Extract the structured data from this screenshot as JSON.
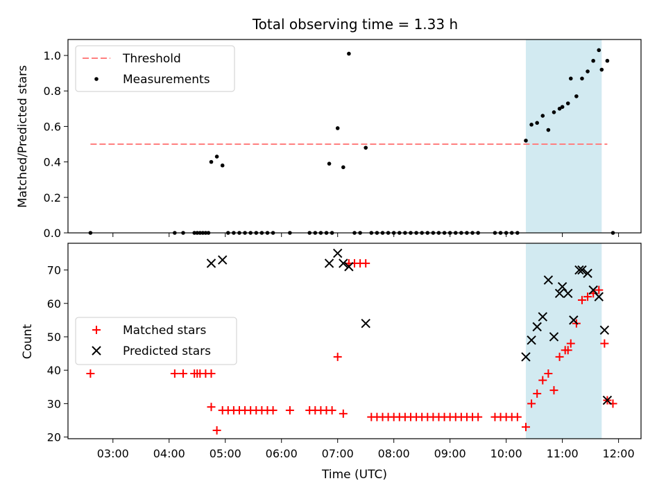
{
  "chart_data": [
    {
      "type": "scatter",
      "title": "Total observing time = 1.33 h",
      "ylabel": "Matched/Predicted stars",
      "xlabel": "",
      "x_unit": "time (UTC, HH:MM)",
      "xlim": [
        "02:12",
        "12:24"
      ],
      "ylim": [
        0,
        1.09
      ],
      "yticks": [
        "0.0",
        "0.2",
        "0.4",
        "0.6",
        "0.8",
        "1.0"
      ],
      "grid": false,
      "legend_position": "upper-left",
      "shaded_interval": {
        "start": "10:21",
        "end": "11:42",
        "color": "#add8e6"
      },
      "threshold": {
        "name": "Threshold",
        "y": 0.5,
        "x_start": "02:36",
        "x_end": "11:48",
        "color": "#ff7f7f",
        "style": "dashed"
      },
      "series": [
        {
          "name": "Measurements",
          "color": "#000000",
          "marker": "dot",
          "points": [
            [
              "02:36",
              0
            ],
            [
              "04:06",
              0
            ],
            [
              "04:15",
              0
            ],
            [
              "04:27",
              0
            ],
            [
              "04:30",
              0
            ],
            [
              "04:33",
              0
            ],
            [
              "04:36",
              0
            ],
            [
              "04:39",
              0
            ],
            [
              "04:42",
              0
            ],
            [
              "04:45",
              0.4
            ],
            [
              "04:51",
              0.43
            ],
            [
              "04:57",
              0.38
            ],
            [
              "05:03",
              0
            ],
            [
              "05:09",
              0
            ],
            [
              "05:15",
              0
            ],
            [
              "05:21",
              0
            ],
            [
              "05:27",
              0
            ],
            [
              "05:33",
              0
            ],
            [
              "05:39",
              0
            ],
            [
              "05:45",
              0
            ],
            [
              "05:51",
              0
            ],
            [
              "06:09",
              0
            ],
            [
              "06:30",
              0
            ],
            [
              "06:36",
              0
            ],
            [
              "06:42",
              0
            ],
            [
              "06:48",
              0
            ],
            [
              "06:51",
              0.39
            ],
            [
              "06:54",
              0
            ],
            [
              "07:00",
              0.59
            ],
            [
              "07:06",
              0.37
            ],
            [
              "07:12",
              1.01
            ],
            [
              "07:18",
              0
            ],
            [
              "07:24",
              0
            ],
            [
              "07:30",
              0.48
            ],
            [
              "07:36",
              0
            ],
            [
              "07:42",
              0
            ],
            [
              "07:48",
              0
            ],
            [
              "07:54",
              0
            ],
            [
              "08:00",
              0
            ],
            [
              "08:06",
              0
            ],
            [
              "08:12",
              0
            ],
            [
              "08:18",
              0
            ],
            [
              "08:24",
              0
            ],
            [
              "08:30",
              0
            ],
            [
              "08:36",
              0
            ],
            [
              "08:42",
              0
            ],
            [
              "08:48",
              0
            ],
            [
              "08:54",
              0
            ],
            [
              "09:00",
              0
            ],
            [
              "09:06",
              0
            ],
            [
              "09:12",
              0
            ],
            [
              "09:18",
              0
            ],
            [
              "09:24",
              0
            ],
            [
              "09:30",
              0
            ],
            [
              "09:48",
              0
            ],
            [
              "09:54",
              0
            ],
            [
              "10:00",
              0
            ],
            [
              "10:06",
              0
            ],
            [
              "10:12",
              0
            ],
            [
              "10:21",
              0.52
            ],
            [
              "10:27",
              0.61
            ],
            [
              "10:33",
              0.62
            ],
            [
              "10:39",
              0.66
            ],
            [
              "10:45",
              0.58
            ],
            [
              "10:51",
              0.68
            ],
            [
              "10:57",
              0.7
            ],
            [
              "11:00",
              0.71
            ],
            [
              "11:06",
              0.73
            ],
            [
              "11:09",
              0.87
            ],
            [
              "11:15",
              0.77
            ],
            [
              "11:21",
              0.87
            ],
            [
              "11:27",
              0.91
            ],
            [
              "11:33",
              0.97
            ],
            [
              "11:39",
              1.03
            ],
            [
              "11:42",
              0.92
            ],
            [
              "11:48",
              0.97
            ],
            [
              "11:54",
              0
            ]
          ]
        }
      ]
    },
    {
      "type": "scatter",
      "xlabel": "Time (UTC)",
      "ylabel": "Count",
      "xlim": [
        "02:12",
        "12:24"
      ],
      "ylim": [
        19.5,
        78
      ],
      "xticks": [
        "03:00",
        "04:00",
        "05:00",
        "06:00",
        "07:00",
        "08:00",
        "09:00",
        "10:00",
        "11:00",
        "12:00"
      ],
      "yticks": [
        "20",
        "30",
        "40",
        "50",
        "60",
        "70"
      ],
      "grid": false,
      "legend_position": "center-left",
      "shaded_interval": {
        "start": "10:21",
        "end": "11:42",
        "color": "#add8e6"
      },
      "series": [
        {
          "name": "Matched stars",
          "color": "#ff0000",
          "marker": "plus",
          "points": [
            [
              "02:36",
              39
            ],
            [
              "04:06",
              39
            ],
            [
              "04:15",
              39
            ],
            [
              "04:27",
              39
            ],
            [
              "04:30",
              39
            ],
            [
              "04:33",
              39
            ],
            [
              "04:39",
              39
            ],
            [
              "04:45",
              39
            ],
            [
              "04:45",
              29
            ],
            [
              "04:51",
              22
            ],
            [
              "04:57",
              28
            ],
            [
              "05:03",
              28
            ],
            [
              "05:09",
              28
            ],
            [
              "05:15",
              28
            ],
            [
              "05:21",
              28
            ],
            [
              "05:27",
              28
            ],
            [
              "05:33",
              28
            ],
            [
              "05:39",
              28
            ],
            [
              "05:45",
              28
            ],
            [
              "05:51",
              28
            ],
            [
              "06:09",
              28
            ],
            [
              "06:30",
              28
            ],
            [
              "06:36",
              28
            ],
            [
              "06:42",
              28
            ],
            [
              "06:48",
              28
            ],
            [
              "06:54",
              28
            ],
            [
              "07:00",
              44
            ],
            [
              "07:06",
              27
            ],
            [
              "07:12",
              72
            ],
            [
              "07:18",
              72
            ],
            [
              "07:24",
              72
            ],
            [
              "07:30",
              72
            ],
            [
              "07:36",
              26
            ],
            [
              "07:42",
              26
            ],
            [
              "07:48",
              26
            ],
            [
              "07:54",
              26
            ],
            [
              "08:00",
              26
            ],
            [
              "08:06",
              26
            ],
            [
              "08:12",
              26
            ],
            [
              "08:18",
              26
            ],
            [
              "08:24",
              26
            ],
            [
              "08:30",
              26
            ],
            [
              "08:36",
              26
            ],
            [
              "08:42",
              26
            ],
            [
              "08:48",
              26
            ],
            [
              "08:54",
              26
            ],
            [
              "09:00",
              26
            ],
            [
              "09:06",
              26
            ],
            [
              "09:12",
              26
            ],
            [
              "09:18",
              26
            ],
            [
              "09:24",
              26
            ],
            [
              "09:30",
              26
            ],
            [
              "09:48",
              26
            ],
            [
              "09:54",
              26
            ],
            [
              "10:00",
              26
            ],
            [
              "10:06",
              26
            ],
            [
              "10:12",
              26
            ],
            [
              "10:21",
              23
            ],
            [
              "10:27",
              30
            ],
            [
              "10:33",
              33
            ],
            [
              "10:39",
              37
            ],
            [
              "10:45",
              39
            ],
            [
              "10:51",
              34
            ],
            [
              "10:57",
              44
            ],
            [
              "11:03",
              46
            ],
            [
              "11:06",
              46
            ],
            [
              "11:09",
              48
            ],
            [
              "11:15",
              54
            ],
            [
              "11:21",
              61
            ],
            [
              "11:27",
              62
            ],
            [
              "11:33",
              63
            ],
            [
              "11:39",
              64
            ],
            [
              "11:45",
              48
            ],
            [
              "11:48",
              31
            ],
            [
              "11:54",
              30
            ]
          ]
        },
        {
          "name": "Predicted stars",
          "color": "#000000",
          "marker": "cross",
          "points": [
            [
              "04:45",
              72
            ],
            [
              "04:57",
              73
            ],
            [
              "06:51",
              72
            ],
            [
              "07:00",
              75
            ],
            [
              "07:06",
              72
            ],
            [
              "07:12",
              71
            ],
            [
              "07:30",
              54
            ],
            [
              "10:21",
              44
            ],
            [
              "10:27",
              49
            ],
            [
              "10:33",
              53
            ],
            [
              "10:39",
              56
            ],
            [
              "10:45",
              67
            ],
            [
              "10:51",
              50
            ],
            [
              "10:57",
              63
            ],
            [
              "11:00",
              65
            ],
            [
              "11:06",
              63
            ],
            [
              "11:12",
              55
            ],
            [
              "11:18",
              70
            ],
            [
              "11:21",
              70
            ],
            [
              "11:27",
              69
            ],
            [
              "11:33",
              64
            ],
            [
              "11:39",
              62
            ],
            [
              "11:45",
              52
            ],
            [
              "11:48",
              31
            ]
          ]
        }
      ]
    }
  ]
}
